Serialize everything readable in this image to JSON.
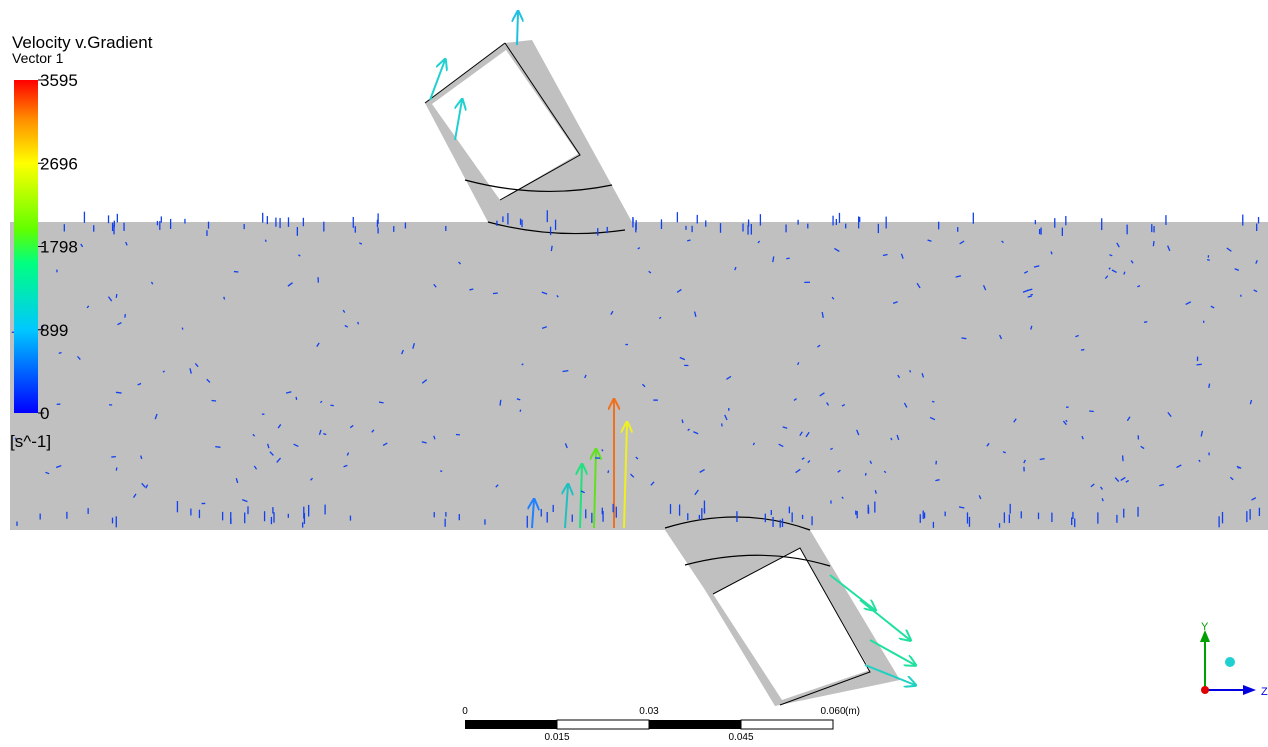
{
  "legend": {
    "title": "Velocity v.Gradient",
    "subtitle": "Vector 1",
    "ticks": [
      "3595",
      "2696",
      "1798",
      "899",
      "0"
    ],
    "unit": "[s^-1]"
  },
  "scale_bar": {
    "top_labels": [
      "0",
      "0.03",
      "0.060"
    ],
    "unit": "(m)",
    "bottom_labels": [
      "0.015",
      "0.045"
    ]
  },
  "axes": {
    "y": "Y",
    "z": "Z"
  }
}
